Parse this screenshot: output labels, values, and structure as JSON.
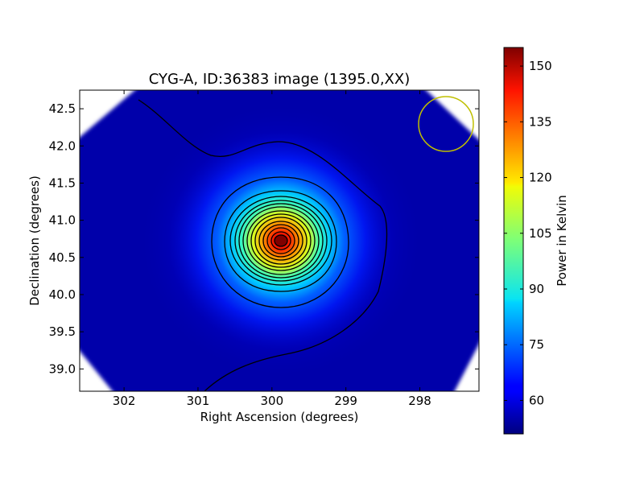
{
  "chart_data": {
    "type": "heatmap",
    "title": "CYG-A, ID:36383 image (1395.0,XX)",
    "xlabel": "Right Ascension (degrees)",
    "ylabel": "Declination (degrees)",
    "xlim": [
      302.6,
      297.2
    ],
    "ylim": [
      38.7,
      42.75
    ],
    "x_reversed": true,
    "xticks": [
      302,
      301,
      300,
      299,
      298
    ],
    "xtick_labels": [
      "302",
      "301",
      "300",
      "299",
      "298"
    ],
    "yticks": [
      39.0,
      39.5,
      40.0,
      40.5,
      41.0,
      41.5,
      42.0,
      42.5
    ],
    "ytick_labels": [
      "39.0",
      "39.5",
      "40.0",
      "40.5",
      "41.0",
      "41.5",
      "42.0",
      "42.5"
    ],
    "source": {
      "ra": 299.87,
      "dec": 40.73,
      "peak": 155
    },
    "background_level": 52,
    "contours": {
      "count": 14,
      "color": "#000000"
    },
    "beam_circle": {
      "ra": 297.65,
      "dec": 42.28,
      "color": "#bfbf00"
    },
    "colorbar": {
      "label": "Power in Kelvin",
      "min": 51,
      "max": 155,
      "ticks": [
        60,
        75,
        90,
        105,
        120,
        135,
        150
      ],
      "tick_labels": [
        "60",
        "75",
        "90",
        "105",
        "120",
        "135",
        "150"
      ],
      "colormap": "jet"
    }
  }
}
